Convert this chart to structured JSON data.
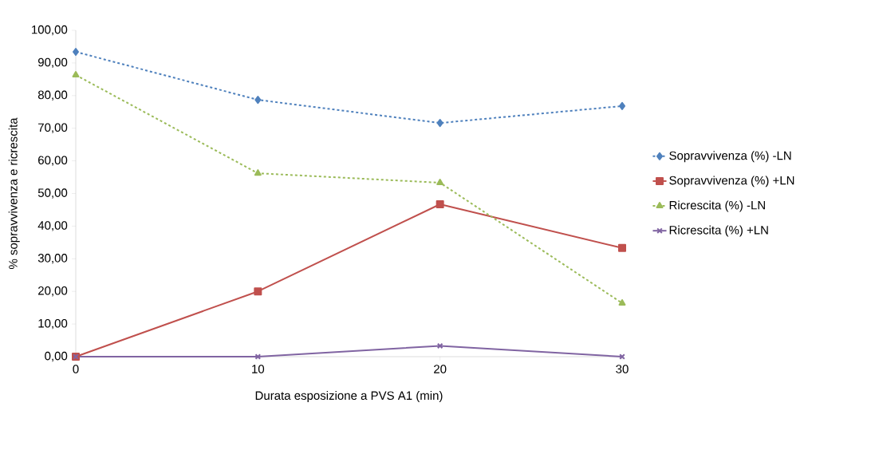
{
  "chart_data": {
    "type": "line",
    "xlabel": "Durata esposizione a PVS A1 (min)",
    "ylabel": "% sopravvivenza e ricrescita",
    "x": [
      0,
      10,
      20,
      30
    ],
    "series": [
      {
        "name": "Sopravvivenza (%) -LN",
        "color": "#4f81bd",
        "marker": "diamond",
        "line_style": "dashed",
        "values": [
          93.4,
          78.7,
          71.6,
          76.8
        ]
      },
      {
        "name": "Sopravvivenza (%) +LN",
        "color": "#c0504d",
        "marker": "square",
        "line_style": "solid",
        "values": [
          0,
          20.0,
          46.7,
          33.3
        ]
      },
      {
        "name": "Ricrescita (%) -LN",
        "color": "#9bbb59",
        "marker": "triangle",
        "line_style": "dashed",
        "values": [
          86.3,
          56.2,
          53.3,
          16.4
        ]
      },
      {
        "name": "Ricrescita (%) +LN",
        "color": "#8064a2",
        "marker": "cross",
        "line_style": "solid",
        "values": [
          0,
          0,
          3.3,
          0
        ]
      }
    ],
    "xlim": [
      0,
      30
    ],
    "xticks": [
      0,
      10,
      20,
      30
    ],
    "ylim": [
      0,
      100
    ],
    "yticks": [
      {
        "value": 0,
        "label": "0,00"
      },
      {
        "value": 10,
        "label": "10,00"
      },
      {
        "value": 20,
        "label": "20,00"
      },
      {
        "value": 30,
        "label": "30,00"
      },
      {
        "value": 40,
        "label": "40,00"
      },
      {
        "value": 50,
        "label": "50,00"
      },
      {
        "value": 60,
        "label": "60,00"
      },
      {
        "value": 70,
        "label": "70,00"
      },
      {
        "value": 80,
        "label": "80,00"
      },
      {
        "value": 90,
        "label": "90,00"
      },
      {
        "value": 100,
        "label": "100,00"
      }
    ],
    "grid": false,
    "legend": "right"
  }
}
